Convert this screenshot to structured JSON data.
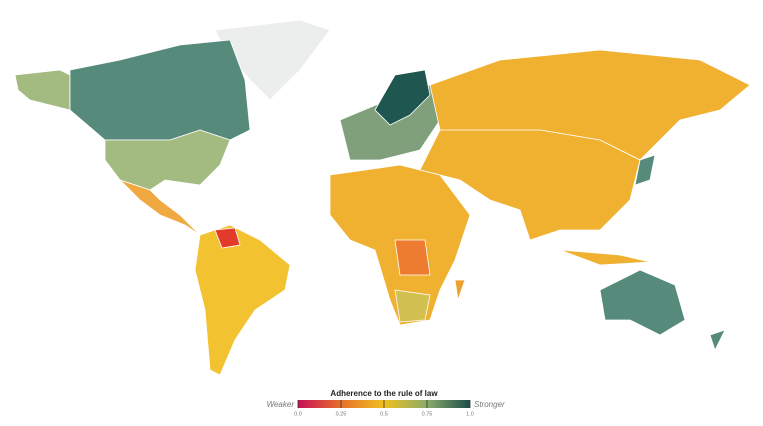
{
  "legend": {
    "title": "Adherence to the rule of law",
    "low_label": "Weaker",
    "high_label": "Stronger",
    "range": [
      0,
      1
    ],
    "ticks": [
      {
        "value": 0,
        "label": "0.0"
      },
      0.25,
      0.5,
      0.75,
      {
        "value": 1,
        "label": "1.0"
      }
    ]
  }
}
